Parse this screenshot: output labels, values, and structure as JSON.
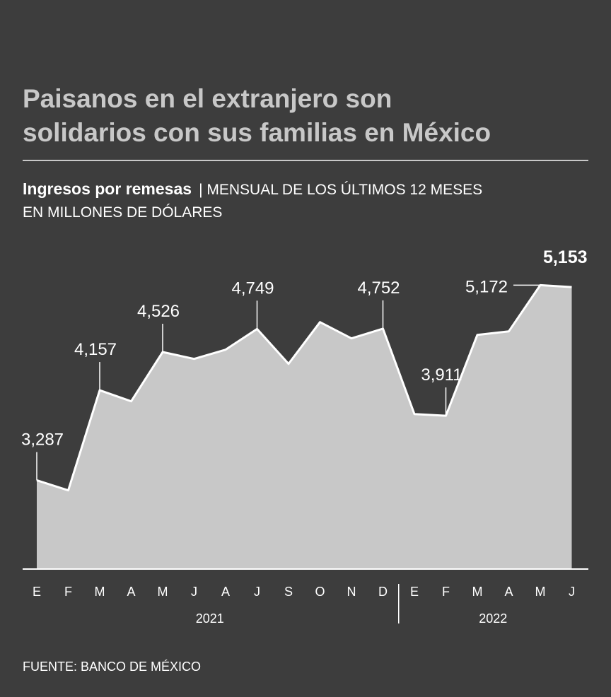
{
  "chart_data": {
    "type": "area",
    "title": "Paisanos en el extranjero son solidarios con sus familias en México",
    "subtitle": "Ingresos por remesas",
    "subtitle_detail": "| MENSUAL DE LOS ÚLTIMOS 12 MESES",
    "y_axis_label": "EN MILLONES DE DÓLARES",
    "source": "FUENTE: BANCO DE MÉXICO",
    "categories": [
      "E",
      "F",
      "M",
      "A",
      "M",
      "J",
      "A",
      "J",
      "S",
      "O",
      "N",
      "D",
      "E",
      "F",
      "M",
      "A",
      "M",
      "J"
    ],
    "year_groups": [
      {
        "label": "2021",
        "count": 12
      },
      {
        "label": "2022",
        "count": 6
      }
    ],
    "values": [
      3287,
      3190,
      4157,
      4050,
      4526,
      4460,
      4549,
      4749,
      4412,
      4815,
      4658,
      4752,
      3927,
      3911,
      4692,
      4726,
      5172,
      5153
    ],
    "value_labels": [
      "3,287",
      null,
      "4,157",
      null,
      "4,526",
      null,
      null,
      "4,749",
      null,
      null,
      null,
      "4,752",
      null,
      "3,911",
      null,
      null,
      "5,172",
      "5,153"
    ],
    "color": "#c8c8c8",
    "line_color": "#ffffff",
    "ylim": [
      2430,
      5400
    ]
  }
}
